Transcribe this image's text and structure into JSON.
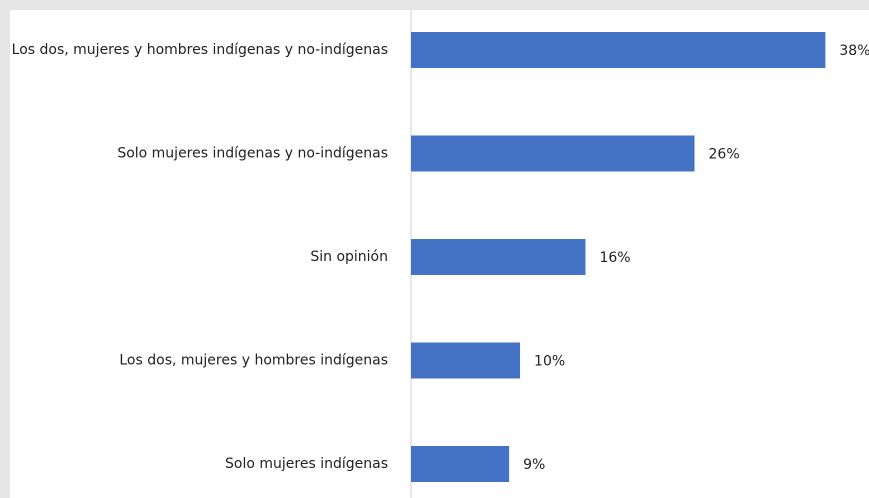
{
  "chart_data": {
    "type": "bar",
    "orientation": "horizontal",
    "categories": [
      "Los dos, mujeres y hombres indígenas y no-indígenas",
      "Solo mujeres indígenas y no-indígenas",
      "Sin opinión",
      "Los dos, mujeres y hombres indígenas",
      "Solo mujeres indígenas"
    ],
    "values": [
      38,
      26,
      16,
      10,
      9
    ],
    "value_labels": [
      "38%",
      "26%",
      "16%",
      "10%",
      "9%"
    ],
    "color": "#4472c4",
    "xlim": [
      0,
      42
    ]
  }
}
